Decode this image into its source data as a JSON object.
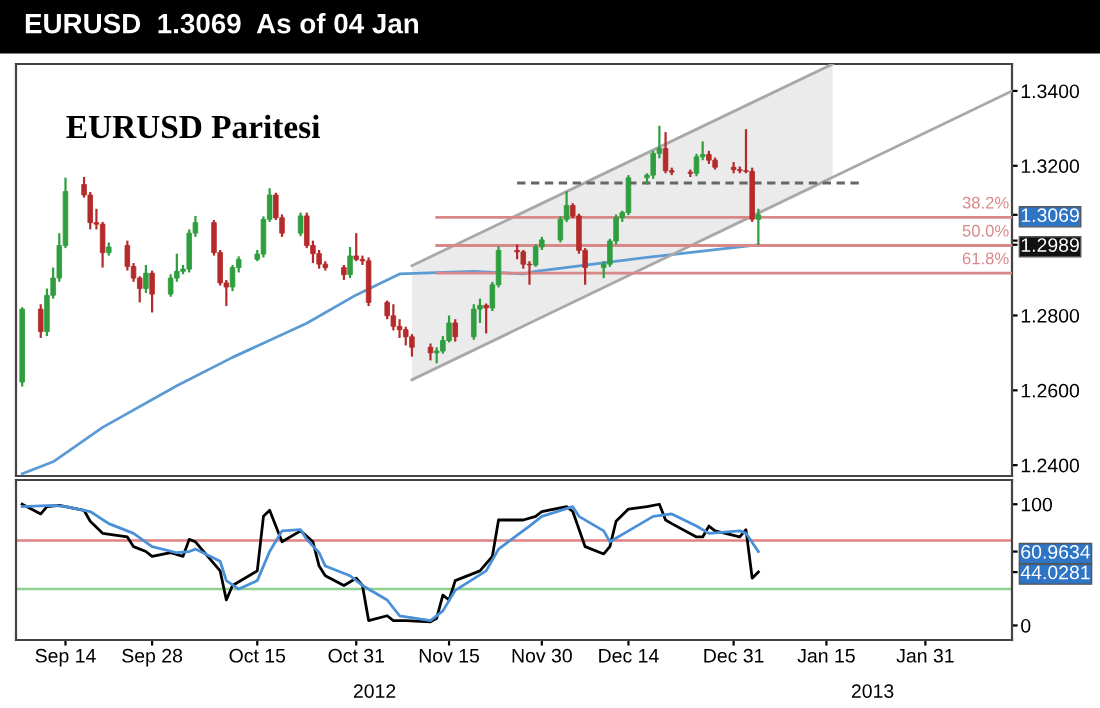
{
  "chart_data": [
    {
      "type": "candlestick",
      "title": "EURUSD Paritesi",
      "subtitle": "EURUSD  1.3069  As of 04 Jan",
      "x": [
        "2012-09-07",
        "2012-09-10",
        "2012-09-11",
        "2012-09-12",
        "2012-09-13",
        "2012-09-14",
        "2012-09-17",
        "2012-09-18",
        "2012-09-19",
        "2012-09-20",
        "2012-09-21",
        "2012-09-24",
        "2012-09-25",
        "2012-09-26",
        "2012-09-27",
        "2012-09-28",
        "2012-10-01",
        "2012-10-02",
        "2012-10-03",
        "2012-10-04",
        "2012-10-05",
        "2012-10-08",
        "2012-10-09",
        "2012-10-10",
        "2012-10-11",
        "2012-10-12",
        "2012-10-15",
        "2012-10-16",
        "2012-10-17",
        "2012-10-18",
        "2012-10-19",
        "2012-10-22",
        "2012-10-23",
        "2012-10-24",
        "2012-10-25",
        "2012-10-26",
        "2012-10-29",
        "2012-10-30",
        "2012-10-31",
        "2012-11-01",
        "2012-11-02",
        "2012-11-05",
        "2012-11-06",
        "2012-11-07",
        "2012-11-08",
        "2012-11-09",
        "2012-11-12",
        "2012-11-13",
        "2012-11-14",
        "2012-11-15",
        "2012-11-16",
        "2012-11-19",
        "2012-11-20",
        "2012-11-21",
        "2012-11-22",
        "2012-11-23",
        "2012-11-26",
        "2012-11-27",
        "2012-11-28",
        "2012-11-29",
        "2012-11-30",
        "2012-12-03",
        "2012-12-04",
        "2012-12-05",
        "2012-12-06",
        "2012-12-07",
        "2012-12-10",
        "2012-12-11",
        "2012-12-12",
        "2012-12-13",
        "2012-12-14",
        "2012-12-17",
        "2012-12-18",
        "2012-12-19",
        "2012-12-20",
        "2012-12-21",
        "2012-12-24",
        "2012-12-25",
        "2012-12-26",
        "2012-12-27",
        "2012-12-28",
        "2012-12-31",
        "2013-01-01",
        "2013-01-02",
        "2013-01-03",
        "2013-01-04"
      ],
      "ohlc": [
        [
          1.2622,
          1.2822,
          1.261,
          1.2817
        ],
        [
          1.2817,
          1.283,
          1.274,
          1.2757
        ],
        [
          1.2757,
          1.2872,
          1.2745,
          1.2854
        ],
        [
          1.2854,
          1.2928,
          1.2845,
          1.29
        ],
        [
          1.29,
          1.302,
          1.289,
          1.2987
        ],
        [
          1.2987,
          1.3168,
          1.298,
          1.3131
        ],
        [
          1.315,
          1.317,
          1.3115,
          1.3122
        ],
        [
          1.3122,
          1.313,
          1.303,
          1.3048
        ],
        [
          1.3048,
          1.3085,
          1.303,
          1.3044
        ],
        [
          1.3044,
          1.305,
          1.2928,
          1.2968
        ],
        [
          1.2968,
          1.2995,
          1.296,
          1.2983
        ],
        [
          1.2987,
          1.3,
          1.292,
          1.2931
        ],
        [
          1.2931,
          1.294,
          1.289,
          1.29
        ],
        [
          1.29,
          1.2905,
          1.2835,
          1.2872
        ],
        [
          1.2872,
          1.2935,
          1.286,
          1.2913
        ],
        [
          1.2913,
          1.292,
          1.2808,
          1.2857
        ],
        [
          1.2857,
          1.291,
          1.285,
          1.29
        ],
        [
          1.29,
          1.2965,
          1.289,
          1.2918
        ],
        [
          1.2918,
          1.2935,
          1.291,
          1.2924
        ],
        [
          1.2924,
          1.303,
          1.2915,
          1.302
        ],
        [
          1.302,
          1.3066,
          1.301,
          1.3048
        ],
        [
          1.3048,
          1.3055,
          1.296,
          1.2968
        ],
        [
          1.2968,
          1.2975,
          1.288,
          1.2887
        ],
        [
          1.2887,
          1.2895,
          1.2825,
          1.2876
        ],
        [
          1.2876,
          1.2935,
          1.2865,
          1.2928
        ],
        [
          1.2928,
          1.2958,
          1.2915,
          1.295
        ],
        [
          1.295,
          1.2975,
          1.2945,
          1.2964
        ],
        [
          1.2964,
          1.3065,
          1.2955,
          1.3057
        ],
        [
          1.3057,
          1.314,
          1.305,
          1.3122
        ],
        [
          1.3122,
          1.3128,
          1.3055,
          1.3061
        ],
        [
          1.3061,
          1.307,
          1.301,
          1.302
        ],
        [
          1.302,
          1.3075,
          1.3012,
          1.3066
        ],
        [
          1.3066,
          1.3075,
          1.298,
          1.2987
        ],
        [
          1.2987,
          1.3,
          1.294,
          1.2965
        ],
        [
          1.2965,
          1.2975,
          1.2925,
          1.2937
        ],
        [
          1.2937,
          1.2945,
          1.292,
          1.2928
        ],
        [
          1.2928,
          1.2935,
          1.2895,
          1.2909
        ],
        [
          1.2909,
          1.2983,
          1.29,
          1.2959
        ],
        [
          1.2959,
          1.302,
          1.2945,
          1.295
        ],
        [
          1.295,
          1.296,
          1.2935,
          1.2946
        ],
        [
          1.2946,
          1.2955,
          1.2825,
          1.2835
        ],
        [
          1.2835,
          1.284,
          1.279,
          1.2799
        ],
        [
          1.2799,
          1.283,
          1.276,
          1.2771
        ],
        [
          1.2771,
          1.279,
          1.274,
          1.2762
        ],
        [
          1.2762,
          1.277,
          1.272,
          1.2743
        ],
        [
          1.2743,
          1.275,
          1.269,
          1.2715
        ],
        [
          1.2715,
          1.2725,
          1.268,
          1.27
        ],
        [
          1.27,
          1.2715,
          1.2672,
          1.2705
        ],
        [
          1.2705,
          1.2745,
          1.2698,
          1.2733
        ],
        [
          1.2733,
          1.28,
          1.2728,
          1.278
        ],
        [
          1.278,
          1.279,
          1.273,
          1.2743
        ],
        [
          1.2743,
          1.283,
          1.2735,
          1.2817
        ],
        [
          1.2817,
          1.2845,
          1.278,
          1.2827
        ],
        [
          1.2827,
          1.2832,
          1.2752,
          1.282
        ],
        [
          1.282,
          1.289,
          1.2812,
          1.2882
        ],
        [
          1.2882,
          1.2985,
          1.2875,
          1.2974
        ],
        [
          1.2974,
          1.299,
          1.295,
          1.297
        ],
        [
          1.297,
          1.2975,
          1.2925,
          1.2937
        ],
        [
          1.2937,
          1.2945,
          1.2882,
          1.2935
        ],
        [
          1.2935,
          1.299,
          1.293,
          1.2983
        ],
        [
          1.2983,
          1.301,
          1.2975,
          1.3002
        ],
        [
          1.3002,
          1.3065,
          1.2995,
          1.3057
        ],
        [
          1.3057,
          1.3132,
          1.305,
          1.3094
        ],
        [
          1.3094,
          1.31,
          1.306,
          1.3066
        ],
        [
          1.3066,
          1.3072,
          1.2965,
          1.2974
        ],
        [
          1.2974,
          1.298,
          1.2882,
          1.2928
        ],
        [
          1.2928,
          1.2945,
          1.29,
          1.2937
        ],
        [
          1.2937,
          1.3005,
          1.293,
          1.2999
        ],
        [
          1.2999,
          1.307,
          1.299,
          1.3062
        ],
        [
          1.3062,
          1.308,
          1.305,
          1.3075
        ],
        [
          1.3075,
          1.3175,
          1.3068,
          1.3168
        ],
        [
          1.3168,
          1.318,
          1.315,
          1.3175
        ],
        [
          1.3175,
          1.324,
          1.3165,
          1.3233
        ],
        [
          1.3233,
          1.3307,
          1.322,
          1.3246
        ],
        [
          1.3246,
          1.329,
          1.318,
          1.3187
        ],
        [
          1.3187,
          1.3195,
          1.3175,
          1.3183
        ],
        [
          1.3183,
          1.319,
          1.317,
          1.318
        ],
        [
          1.318,
          1.3232,
          1.3172,
          1.3224
        ],
        [
          1.3224,
          1.3265,
          1.3215,
          1.323
        ],
        [
          1.323,
          1.324,
          1.3205,
          1.3215
        ],
        [
          1.3215,
          1.3222,
          1.319,
          1.3196
        ],
        [
          1.3196,
          1.321,
          1.318,
          1.319
        ],
        [
          1.319,
          1.3198,
          1.318,
          1.3187
        ],
        [
          1.3187,
          1.3298,
          1.318,
          1.3185
        ],
        [
          1.3185,
          1.3195,
          1.305,
          1.3057
        ],
        [
          1.3057,
          1.3085,
          1.2989,
          1.3069
        ]
      ],
      "colors": [
        "#2e9e3e",
        "#b52a2a",
        "#2e9e3e",
        "#2e9e3e",
        "#2e9e3e",
        "#2e9e3e",
        "#b52a2a",
        "#b52a2a",
        "#b52a2a",
        "#b52a2a",
        "#2e9e3e",
        "#b52a2a",
        "#b52a2a",
        "#b52a2a",
        "#2e9e3e",
        "#b52a2a",
        "#2e9e3e",
        "#2e9e3e",
        "#2e9e3e",
        "#2e9e3e",
        "#2e9e3e",
        "#b52a2a",
        "#b52a2a",
        "#b52a2a",
        "#2e9e3e",
        "#2e9e3e",
        "#2e9e3e",
        "#2e9e3e",
        "#2e9e3e",
        "#b52a2a",
        "#b52a2a",
        "#2e9e3e",
        "#b52a2a",
        "#b52a2a",
        "#b52a2a",
        "#b52a2a",
        "#b52a2a",
        "#2e9e3e",
        "#b52a2a",
        "#b52a2a",
        "#b52a2a",
        "#b52a2a",
        "#b52a2a",
        "#b52a2a",
        "#b52a2a",
        "#b52a2a",
        "#b52a2a",
        "#2e9e3e",
        "#2e9e3e",
        "#2e9e3e",
        "#b52a2a",
        "#2e9e3e",
        "#2e9e3e",
        "#b52a2a",
        "#2e9e3e",
        "#2e9e3e",
        "#b52a2a",
        "#b52a2a",
        "#b52a2a",
        "#2e9e3e",
        "#2e9e3e",
        "#2e9e3e",
        "#2e9e3e",
        "#b52a2a",
        "#b52a2a",
        "#b52a2a",
        "#2e9e3e",
        "#2e9e3e",
        "#2e9e3e",
        "#2e9e3e",
        "#2e9e3e",
        "#2e9e3e",
        "#2e9e3e",
        "#2e9e3e",
        "#b52a2a",
        "#b52a2a",
        "#b52a2a",
        "#2e9e3e",
        "#2e9e3e",
        "#b52a2a",
        "#b52a2a",
        "#b52a2a",
        "#b52a2a",
        "#b52a2a",
        "#b52a2a",
        "#2e9e3e"
      ],
      "series": [
        {
          "type": "line",
          "color": "#5b9bd5",
          "x": [
            "2012-09-07",
            "2012-09-12",
            "2012-09-20",
            "2012-10-02",
            "2012-10-11",
            "2012-10-23",
            "2012-10-31",
            "2012-11-07",
            "2012-11-19",
            "2012-11-27",
            "2012-11-29",
            "2012-12-17",
            "2012-12-27",
            "2013-01-04"
          ],
          "values": [
            1.2377,
            1.2409,
            1.2501,
            1.2612,
            1.2688,
            1.2779,
            1.2855,
            1.2911,
            1.2918,
            1.2911,
            1.2918,
            1.2955,
            1.2974,
            1.2989
          ]
        },
        {
          "type": "line",
          "color": "#a8a8a8",
          "x": [
            "2012-11-09",
            "2013-01-16"
          ],
          "values": [
            1.2933,
            1.3472
          ],
          "lower": [
            1.2628,
            1.3163
          ],
          "upper": [
            1.2933,
            1.3472
          ]
        },
        {
          "type": "line",
          "color": "#a8a8a8",
          "x": [
            "2012-11-09",
            "2013-02-14"
          ],
          "values": [
            1.2628,
            1.34
          ]
        },
        {
          "type": "line",
          "name": "38.2%",
          "color": "#d9888a",
          "x": [
            "2012-11-13",
            "2013-02-14"
          ],
          "values": [
            1.3062,
            1.3062
          ]
        },
        {
          "type": "line",
          "name": "50.0%",
          "color": "#d9888a",
          "x": [
            "2012-11-13",
            "2013-02-14"
          ],
          "values": [
            1.2987,
            1.2987
          ]
        },
        {
          "type": "line",
          "name": "61.8%",
          "color": "#d9888a",
          "x": [
            "2012-11-13",
            "2013-02-14"
          ],
          "values": [
            1.2913,
            1.2913
          ]
        },
        {
          "type": "line",
          "color": "#666666",
          "line_style": "dashed",
          "x": [
            "2012-11-26",
            "2013-01-21"
          ],
          "values": [
            1.3154,
            1.3154
          ]
        }
      ],
      "xlim": [
        "2012-09-06",
        "2013-02-14"
      ],
      "ylim": [
        1.2371,
        1.3472
      ],
      "yticks": [
        {
          "value": 1.24,
          "label": "1.2400"
        },
        {
          "value": 1.26,
          "label": "1.2600"
        },
        {
          "value": 1.28,
          "label": "1.2800"
        },
        {
          "value": 1.3,
          "label": null
        },
        {
          "value": 1.2989,
          "label": "1.2989"
        },
        {
          "value": 1.3069,
          "label": "1.3069"
        },
        {
          "value": 1.32,
          "label": "1.3200"
        },
        {
          "value": 1.34,
          "label": "1.3400"
        }
      ],
      "tick_labels": "y"
    },
    {
      "type": "line",
      "series": [
        {
          "color": "#000000",
          "x": [
            "2012-09-07",
            "2012-09-10",
            "2012-09-11",
            "2012-09-13",
            "2012-09-17",
            "2012-09-18",
            "2012-09-20",
            "2012-09-24",
            "2012-09-25",
            "2012-09-27",
            "2012-09-28",
            "2012-10-01",
            "2012-10-03",
            "2012-10-04",
            "2012-10-05",
            "2012-10-09",
            "2012-10-10",
            "2012-10-11",
            "2012-10-15",
            "2012-10-16",
            "2012-10-17",
            "2012-10-18",
            "2012-10-19",
            "2012-10-22",
            "2012-10-24",
            "2012-10-25",
            "2012-10-26",
            "2012-10-29",
            "2012-10-31",
            "2012-11-01",
            "2012-11-02",
            "2012-11-05",
            "2012-11-06",
            "2012-11-08",
            "2012-11-12",
            "2012-11-13",
            "2012-11-14",
            "2012-11-15",
            "2012-11-16",
            "2012-11-20",
            "2012-11-22",
            "2012-11-23",
            "2012-11-27",
            "2012-11-29",
            "2012-11-30",
            "2012-12-04",
            "2012-12-05",
            "2012-12-07",
            "2012-12-10",
            "2012-12-11",
            "2012-12-12",
            "2012-12-14",
            "2012-12-17",
            "2012-12-19",
            "2012-12-20",
            "2012-12-21",
            "2012-12-25",
            "2012-12-26",
            "2012-12-27",
            "2012-12-28",
            "2013-01-01",
            "2013-01-02",
            "2013-01-03",
            "2013-01-04"
          ],
          "values": [
            100,
            92,
            98,
            99,
            95,
            86,
            76,
            73,
            65,
            61,
            57,
            60,
            57,
            71,
            69,
            45,
            21,
            33,
            45,
            90,
            95,
            82,
            69,
            78,
            69,
            49,
            41,
            33,
            39,
            33,
            4,
            8,
            4,
            4,
            3,
            6,
            25,
            21,
            37,
            45,
            57,
            87,
            87,
            90,
            94,
            98,
            94,
            65,
            59,
            65,
            86,
            96,
            98,
            100,
            87,
            84,
            73,
            73,
            82,
            78,
            73,
            79,
            39,
            44.0281
          ]
        },
        {
          "color": "#4a90d9",
          "x": [
            "2012-09-07",
            "2012-09-12",
            "2012-09-14",
            "2012-09-18",
            "2012-09-21",
            "2012-09-25",
            "2012-09-28",
            "2012-10-02",
            "2012-10-04",
            "2012-10-05",
            "2012-10-09",
            "2012-10-10",
            "2012-10-12",
            "2012-10-15",
            "2012-10-17",
            "2012-10-19",
            "2012-10-22",
            "2012-10-23",
            "2012-10-25",
            "2012-10-26",
            "2012-10-30",
            "2012-11-01",
            "2012-11-05",
            "2012-11-07",
            "2012-11-12",
            "2012-11-14",
            "2012-11-16",
            "2012-11-21",
            "2012-11-23",
            "2012-11-28",
            "2012-11-30",
            "2012-12-05",
            "2012-12-06",
            "2012-12-10",
            "2012-12-11",
            "2012-12-14",
            "2012-12-18",
            "2012-12-21",
            "2012-12-25",
            "2012-12-27",
            "2013-01-01",
            "2013-01-02",
            "2013-01-04"
          ],
          "values": [
            98,
            99,
            98,
            94,
            84,
            76,
            65,
            60,
            61,
            63,
            53,
            37,
            30,
            37,
            61,
            78,
            79,
            71,
            60,
            49,
            41,
            33,
            21,
            8,
            4,
            12,
            29,
            45,
            63,
            82,
            90,
            98,
            90,
            78,
            69,
            78,
            90,
            92,
            82,
            76,
            78,
            76,
            60.9634
          ]
        }
      ],
      "ref_lines": [
        {
          "axis": "y",
          "value": 70,
          "color": "#e08080"
        },
        {
          "axis": "y",
          "value": 30,
          "color": "#90d090"
        }
      ],
      "annotations": [
        "2012",
        "2013"
      ],
      "xlim": [
        "2012-09-06",
        "2013-02-14"
      ],
      "ylim": [
        -12,
        120
      ],
      "xticks": [
        {
          "value": "2012-09-14",
          "label": "Sep 14"
        },
        {
          "value": "2012-09-28",
          "label": "Sep 28"
        },
        {
          "value": "2012-10-15",
          "label": "Oct 15"
        },
        {
          "value": "2012-10-31",
          "label": "Oct 31"
        },
        {
          "value": "2012-11-15",
          "label": "Nov 15"
        },
        {
          "value": "2012-11-30",
          "label": "Nov 30"
        },
        {
          "value": "2012-12-14",
          "label": "Dec 14"
        },
        {
          "value": "2012-12-31",
          "label": "Dec 31"
        },
        {
          "value": "2013-01-15",
          "label": "Jan 15"
        },
        {
          "value": "2013-01-31",
          "label": "Jan 31"
        }
      ],
      "yticks": [
        0,
        {
          "value": 44.0281,
          "label": "44.0281"
        },
        {
          "value": 60.9634,
          "label": "60.9634"
        },
        100
      ]
    }
  ]
}
